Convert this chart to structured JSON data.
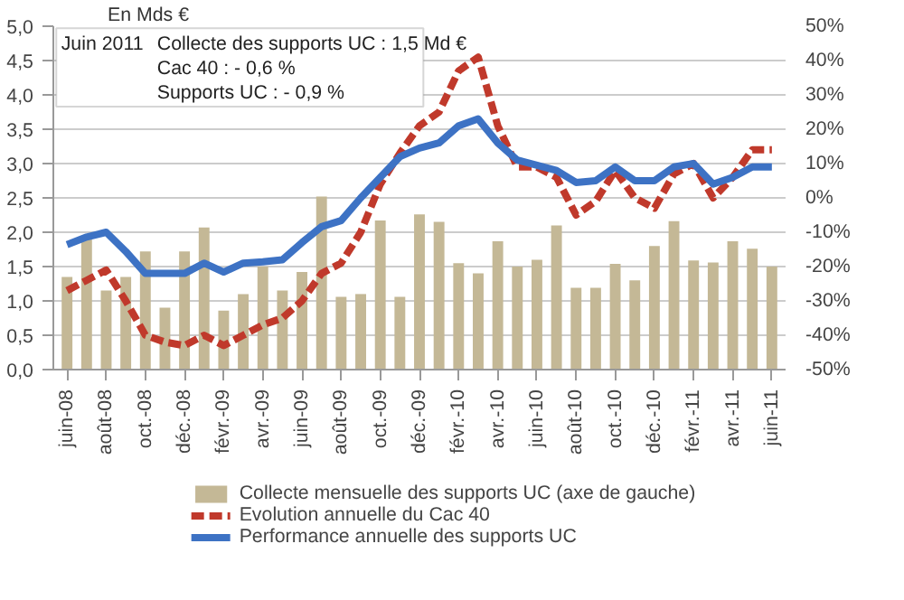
{
  "chart_data": {
    "type": "bar",
    "ylabel": "En Mds €",
    "categories": [
      "juin-08",
      null,
      "août-08",
      null,
      "oct.-08",
      null,
      "déc.-08",
      null,
      "févr.-09",
      null,
      "avr.-09",
      null,
      "juin-09",
      null,
      "août-09",
      null,
      "oct.-09",
      null,
      "déc.-09",
      null,
      "févr.-10",
      null,
      "avr.-10",
      null,
      "juin-10",
      null,
      "août-10",
      null,
      "oct.-10",
      null,
      "déc.-10",
      null,
      "févr.-11",
      null,
      "avr.-11",
      null,
      "juin-11"
    ],
    "series": [
      {
        "name": "Collecte mensuelle des supports UC (axe de gauche)",
        "color": "#c4b896",
        "values": [
          1.35,
          1.9,
          1.15,
          1.35,
          1.72,
          0.9,
          1.72,
          2.07,
          0.86,
          1.1,
          1.5,
          1.15,
          1.42,
          2.52,
          1.06,
          1.1,
          2.17,
          1.06,
          2.26,
          2.15,
          1.55,
          1.4,
          1.87,
          1.5,
          1.6,
          2.1,
          1.19,
          1.19,
          1.54,
          1.3,
          1.8,
          2.16,
          1.59,
          1.56,
          1.87,
          1.76,
          1.5
        ]
      },
      {
        "name": "Evolution annuelle du Cac 40",
        "type": "line",
        "axis": "y2",
        "line_style": "dashed",
        "color": "#c0392b",
        "values": [
          -27,
          -24,
          -21,
          -30,
          -40,
          -42,
          -43,
          -40,
          -43,
          -40,
          -37,
          -35,
          -30,
          -22,
          -19,
          -10,
          4,
          13,
          21,
          25,
          37,
          41,
          21,
          9,
          9,
          6,
          -5,
          -1,
          8,
          0,
          -3,
          7,
          10,
          0,
          6,
          14,
          14
        ]
      },
      {
        "name": "Performance annuelle des supports UC",
        "type": "line",
        "axis": "y2",
        "line_style": "solid",
        "color": "#3d72c4",
        "values": [
          -13.6,
          -11.4,
          -10,
          -15.6,
          -22,
          -22,
          -22,
          -19,
          -21.6,
          -19,
          -18.6,
          -18,
          -13,
          -8.4,
          -6.6,
          0,
          6,
          12,
          14.5,
          16,
          21,
          23,
          16,
          11,
          9.5,
          8,
          4.5,
          5,
          9,
          5,
          5,
          9,
          10,
          4,
          6,
          9,
          9
        ]
      }
    ],
    "ylim": [
      0,
      5
    ],
    "yticks": [
      {
        "value": 0,
        "label": "0,0"
      },
      {
        "value": 0.5,
        "label": "0,5"
      },
      {
        "value": 1,
        "label": "1,0"
      },
      {
        "value": 1.5,
        "label": "1,5"
      },
      {
        "value": 2,
        "label": "2,0"
      },
      {
        "value": 2.5,
        "label": "2,5"
      },
      {
        "value": 3,
        "label": "3,0"
      },
      {
        "value": 3.5,
        "label": "3,5"
      },
      {
        "value": 4,
        "label": "4,0"
      },
      {
        "value": 4.5,
        "label": "4,5"
      },
      {
        "value": 5,
        "label": "5,0"
      }
    ],
    "y2lim": [
      -50,
      50
    ],
    "y2ticks": [
      {
        "value": -50,
        "label": "-50%"
      },
      {
        "value": -40,
        "label": "-40%"
      },
      {
        "value": -30,
        "label": "-30%"
      },
      {
        "value": -20,
        "label": "-20%"
      },
      {
        "value": -10,
        "label": "-10%"
      },
      {
        "value": 0,
        "label": "0%"
      },
      {
        "value": 10,
        "label": "10%"
      },
      {
        "value": 20,
        "label": "20%"
      },
      {
        "value": 30,
        "label": "30%"
      },
      {
        "value": 40,
        "label": "40%"
      },
      {
        "value": 50,
        "label": "50%"
      }
    ],
    "annotations": [
      "Juin 2011",
      "Collecte des supports UC : 1,5 Md €",
      "Cac 40 : -  0,6 %",
      "Supports UC : - 0,9 %"
    ],
    "grid": "y",
    "legend": "bottom"
  }
}
